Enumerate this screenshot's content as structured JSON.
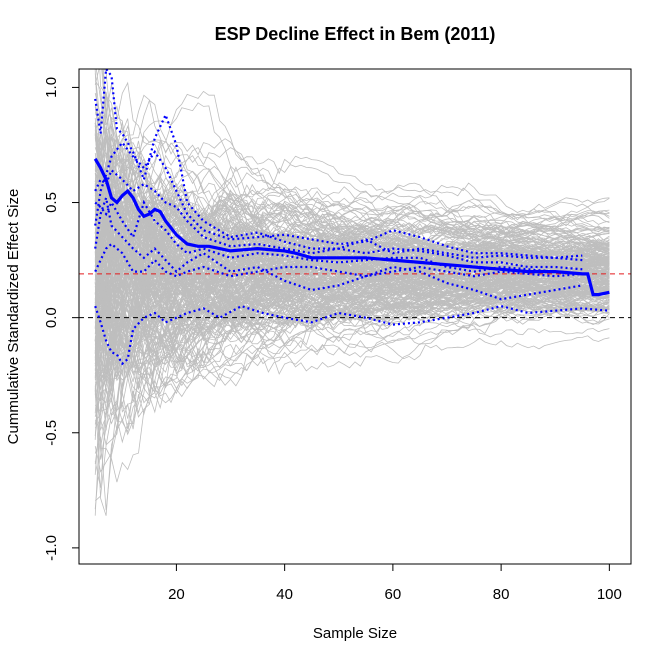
{
  "chart_data": {
    "type": "line",
    "title": "ESP Decline Effect in Bem (2011)",
    "xlabel": "Sample Size",
    "ylabel": "Cummulative Standardized Effect Size",
    "xlim": [
      2,
      104
    ],
    "ylim": [
      -1.07,
      1.08
    ],
    "xticks": [
      20,
      40,
      60,
      80,
      100
    ],
    "xtick_labels": [
      "20",
      "40",
      "60",
      "80",
      "100"
    ],
    "yticks": [
      -1.0,
      -0.5,
      0.0,
      0.5,
      1.0
    ],
    "ytick_labels": [
      "-1.0",
      "-0.5",
      "0.0",
      "0.5",
      "1.0"
    ],
    "grid": false,
    "reference_lines": [
      {
        "y": 0.19,
        "style": "dashed",
        "color": "#e31a1c"
      },
      {
        "y": 0.0,
        "style": "dashed",
        "color": "#000000"
      }
    ],
    "simulation_band": {
      "description": "gray simulated null-effect cumulative paths",
      "color": "#bebebe",
      "x_start": 5,
      "x_end": 100,
      "center": 0.19
    },
    "series": [
      {
        "style": "solid-thick",
        "color": "#0000ff",
        "points": [
          [
            5,
            0.69
          ],
          [
            6,
            0.65
          ],
          [
            7,
            0.6
          ],
          [
            8,
            0.52
          ],
          [
            9,
            0.5
          ],
          [
            10,
            0.53
          ],
          [
            11,
            0.55
          ],
          [
            12,
            0.52
          ],
          [
            13,
            0.47
          ],
          [
            14,
            0.44
          ],
          [
            15,
            0.45
          ],
          [
            16,
            0.47
          ],
          [
            17,
            0.46
          ],
          [
            18,
            0.42
          ],
          [
            19,
            0.39
          ],
          [
            20,
            0.36
          ],
          [
            22,
            0.32
          ],
          [
            24,
            0.31
          ],
          [
            26,
            0.31
          ],
          [
            28,
            0.3
          ],
          [
            30,
            0.29
          ],
          [
            35,
            0.3
          ],
          [
            40,
            0.29
          ],
          [
            42,
            0.28
          ],
          [
            45,
            0.26
          ],
          [
            50,
            0.26
          ],
          [
            55,
            0.26
          ],
          [
            60,
            0.25
          ],
          [
            65,
            0.24
          ],
          [
            70,
            0.23
          ],
          [
            75,
            0.22
          ],
          [
            80,
            0.21
          ],
          [
            85,
            0.2
          ],
          [
            90,
            0.2
          ],
          [
            95,
            0.19
          ],
          [
            96,
            0.19
          ],
          [
            97,
            0.1
          ],
          [
            98,
            0.1
          ],
          [
            100,
            0.11
          ]
        ]
      },
      {
        "style": "dotted",
        "color": "#0000ff",
        "points": [
          [
            5,
            0.95
          ],
          [
            6,
            0.8
          ],
          [
            7,
            1.08
          ],
          [
            8,
            1.05
          ],
          [
            9,
            0.82
          ],
          [
            10,
            0.8
          ],
          [
            12,
            0.72
          ],
          [
            14,
            0.6
          ],
          [
            16,
            0.78
          ],
          [
            18,
            0.88
          ],
          [
            20,
            0.75
          ],
          [
            22,
            0.5
          ],
          [
            25,
            0.42
          ],
          [
            30,
            0.35
          ],
          [
            35,
            0.37
          ],
          [
            40,
            0.33
          ],
          [
            45,
            0.3
          ],
          [
            50,
            0.3
          ],
          [
            55,
            0.28
          ],
          [
            60,
            0.3
          ],
          [
            65,
            0.29
          ],
          [
            70,
            0.27
          ],
          [
            75,
            0.24
          ],
          [
            80,
            0.24
          ],
          [
            85,
            0.22
          ],
          [
            90,
            0.22
          ],
          [
            95,
            0.21
          ]
        ]
      },
      {
        "style": "dotted",
        "color": "#0000ff",
        "points": [
          [
            5,
            0.4
          ],
          [
            6,
            0.55
          ],
          [
            7,
            0.62
          ],
          [
            8,
            0.7
          ],
          [
            10,
            0.76
          ],
          [
            12,
            0.7
          ],
          [
            14,
            0.65
          ],
          [
            16,
            0.72
          ],
          [
            18,
            0.65
          ],
          [
            20,
            0.55
          ],
          [
            22,
            0.45
          ],
          [
            25,
            0.38
          ],
          [
            30,
            0.34
          ],
          [
            35,
            0.35
          ],
          [
            40,
            0.36
          ],
          [
            45,
            0.34
          ],
          [
            50,
            0.32
          ],
          [
            55,
            0.33
          ],
          [
            60,
            0.38
          ],
          [
            65,
            0.35
          ],
          [
            70,
            0.31
          ],
          [
            75,
            0.28
          ],
          [
            80,
            0.28
          ],
          [
            85,
            0.27
          ],
          [
            90,
            0.26
          ],
          [
            95,
            0.25
          ]
        ]
      },
      {
        "style": "dotted",
        "color": "#0000ff",
        "points": [
          [
            5,
            0.5
          ],
          [
            6,
            0.48
          ],
          [
            7,
            0.45
          ],
          [
            8,
            0.5
          ],
          [
            10,
            0.42
          ],
          [
            12,
            0.35
          ],
          [
            14,
            0.5
          ],
          [
            16,
            0.42
          ],
          [
            18,
            0.38
          ],
          [
            20,
            0.32
          ],
          [
            22,
            0.28
          ],
          [
            25,
            0.3
          ],
          [
            30,
            0.26
          ],
          [
            35,
            0.28
          ],
          [
            40,
            0.27
          ],
          [
            45,
            0.25
          ],
          [
            50,
            0.24
          ],
          [
            55,
            0.25
          ],
          [
            60,
            0.26
          ],
          [
            65,
            0.26
          ],
          [
            70,
            0.22
          ],
          [
            75,
            0.2
          ],
          [
            80,
            0.22
          ],
          [
            85,
            0.21
          ],
          [
            90,
            0.2
          ],
          [
            95,
            0.19
          ]
        ]
      },
      {
        "style": "dotted",
        "color": "#0000ff",
        "points": [
          [
            5,
            0.3
          ],
          [
            6,
            0.45
          ],
          [
            7,
            0.52
          ],
          [
            8,
            0.4
          ],
          [
            10,
            0.35
          ],
          [
            12,
            0.3
          ],
          [
            14,
            0.26
          ],
          [
            16,
            0.3
          ],
          [
            18,
            0.25
          ],
          [
            20,
            0.2
          ],
          [
            22,
            0.24
          ],
          [
            25,
            0.28
          ],
          [
            30,
            0.2
          ],
          [
            35,
            0.22
          ],
          [
            40,
            0.16
          ],
          [
            45,
            0.12
          ],
          [
            50,
            0.14
          ],
          [
            55,
            0.18
          ],
          [
            60,
            0.22
          ],
          [
            65,
            0.2
          ],
          [
            70,
            0.15
          ],
          [
            75,
            0.12
          ],
          [
            80,
            0.08
          ],
          [
            85,
            0.1
          ],
          [
            90,
            0.12
          ],
          [
            95,
            0.14
          ]
        ]
      },
      {
        "style": "dotted",
        "color": "#0000ff",
        "points": [
          [
            5,
            0.55
          ],
          [
            6,
            0.6
          ],
          [
            7,
            0.58
          ],
          [
            8,
            0.64
          ],
          [
            10,
            0.6
          ],
          [
            12,
            0.55
          ],
          [
            14,
            0.58
          ],
          [
            16,
            0.55
          ],
          [
            18,
            0.5
          ],
          [
            20,
            0.48
          ],
          [
            22,
            0.42
          ],
          [
            25,
            0.35
          ],
          [
            30,
            0.31
          ],
          [
            35,
            0.32
          ],
          [
            40,
            0.3
          ],
          [
            45,
            0.28
          ],
          [
            50,
            0.3
          ],
          [
            55,
            0.34
          ],
          [
            60,
            0.28
          ],
          [
            65,
            0.3
          ],
          [
            70,
            0.28
          ],
          [
            75,
            0.26
          ],
          [
            80,
            0.27
          ],
          [
            85,
            0.26
          ],
          [
            90,
            0.26
          ],
          [
            95,
            0.27
          ]
        ]
      },
      {
        "style": "dotted",
        "color": "#0000ff",
        "points": [
          [
            5,
            0.05
          ],
          [
            6,
            -0.02
          ],
          [
            7,
            -0.1
          ],
          [
            8,
            -0.15
          ],
          [
            9,
            -0.16
          ],
          [
            10,
            -0.2
          ],
          [
            11,
            -0.18
          ],
          [
            12,
            -0.05
          ],
          [
            14,
            0.0
          ],
          [
            16,
            0.02
          ],
          [
            18,
            -0.02
          ],
          [
            20,
            0.0
          ],
          [
            22,
            0.02
          ],
          [
            25,
            0.04
          ],
          [
            28,
            0.0
          ],
          [
            32,
            0.05
          ],
          [
            36,
            0.02
          ],
          [
            40,
            0.0
          ],
          [
            45,
            -0.02
          ],
          [
            50,
            0.02
          ],
          [
            55,
            0.0
          ],
          [
            60,
            -0.03
          ],
          [
            65,
            -0.02
          ],
          [
            70,
            0.0
          ],
          [
            75,
            0.02
          ],
          [
            80,
            0.05
          ],
          [
            85,
            0.02
          ],
          [
            90,
            0.03
          ],
          [
            95,
            0.04
          ],
          [
            100,
            0.03
          ]
        ]
      },
      {
        "style": "dotted",
        "color": "#0000ff",
        "points": [
          [
            5,
            0.2
          ],
          [
            6,
            0.25
          ],
          [
            7,
            0.3
          ],
          [
            8,
            0.32
          ],
          [
            10,
            0.28
          ],
          [
            12,
            0.2
          ],
          [
            14,
            0.2
          ],
          [
            16,
            0.25
          ],
          [
            18,
            0.2
          ],
          [
            20,
            0.18
          ],
          [
            22,
            0.2
          ],
          [
            25,
            0.22
          ],
          [
            30,
            0.18
          ],
          [
            35,
            0.2
          ],
          [
            40,
            0.22
          ],
          [
            45,
            0.22
          ],
          [
            50,
            0.2
          ],
          [
            55,
            0.18
          ],
          [
            60,
            0.2
          ],
          [
            65,
            0.22
          ],
          [
            70,
            0.2
          ],
          [
            75,
            0.18
          ],
          [
            80,
            0.2
          ],
          [
            85,
            0.19
          ],
          [
            90,
            0.18
          ],
          [
            95,
            0.19
          ]
        ]
      }
    ]
  }
}
